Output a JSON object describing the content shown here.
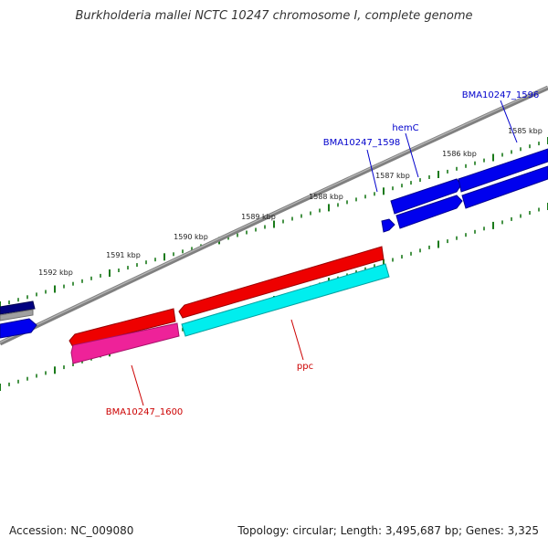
{
  "title": "Burkholderia mallei NCTC 10247 chromosome I, complete genome",
  "footer": {
    "accession": "Accession: NC_009080",
    "topology": "Topology: circular; Length: 3,495,687 bp; Genes: 3,325"
  },
  "colors": {
    "background": "#ffffff",
    "backbone": "#808080",
    "tick": "#1a7a1a",
    "forward_gene": "#0000ee",
    "forward_gene_dark": "#000090",
    "reverse_gene": "#ee0000",
    "reverse_gene_pink": "#ee2299",
    "reverse_gene_cyan": "#00eeee",
    "label_blue": "#0000cc",
    "label_red": "#cc0000"
  },
  "scale_labels": [
    "1585 kbp",
    "1586 kbp",
    "1587 kbp",
    "1588 kbp",
    "1589 kbp",
    "1590 kbp",
    "1591 kbp",
    "1592 kbp"
  ],
  "gene_labels": [
    {
      "text": "BMA10247_1596",
      "color": "blue"
    },
    {
      "text": "hemC",
      "color": "blue"
    },
    {
      "text": "BMA10247_1598",
      "color": "blue"
    },
    {
      "text": "ppc",
      "color": "red"
    },
    {
      "text": "BMA10247_1600",
      "color": "red"
    }
  ]
}
